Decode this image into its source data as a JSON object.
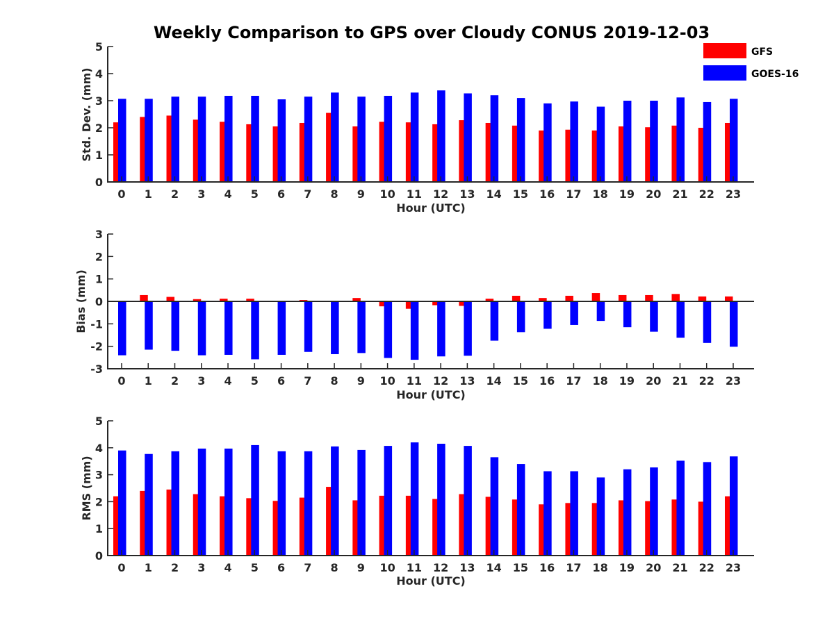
{
  "chart_data": {
    "title": "Weekly Comparison to GPS over Cloudy CONUS 2019-12-03",
    "legend": {
      "placement": "top-right",
      "entries": [
        {
          "name": "GFS",
          "color": "#ff0000"
        },
        {
          "name": "GOES-16",
          "color": "#0000ff"
        }
      ]
    },
    "panels": [
      {
        "type": "bar",
        "xlabel": "Hour (UTC)",
        "ylabel": "Std. Dev. (mm)",
        "ylim": [
          0,
          5
        ],
        "yticks": [
          "0",
          "1",
          "2",
          "3",
          "4",
          "5"
        ],
        "categories": [
          "0",
          "1",
          "2",
          "3",
          "4",
          "5",
          "6",
          "7",
          "8",
          "9",
          "10",
          "11",
          "12",
          "13",
          "14",
          "15",
          "16",
          "17",
          "18",
          "19",
          "20",
          "21",
          "22",
          "23"
        ],
        "grid": false,
        "series": [
          {
            "name": "GFS",
            "color": "#ff0000",
            "values": [
              2.2,
              2.4,
              2.45,
              2.3,
              2.22,
              2.13,
              2.05,
              2.18,
              2.55,
              2.05,
              2.22,
              2.2,
              2.13,
              2.28,
              2.18,
              2.08,
              1.9,
              1.93,
              1.9,
              2.05,
              2.02,
              2.08,
              2.0,
              2.18
            ]
          },
          {
            "name": "GOES-16",
            "color": "#0000ff",
            "values": [
              3.07,
              3.07,
              3.15,
              3.15,
              3.18,
              3.18,
              3.05,
              3.15,
              3.3,
              3.15,
              3.18,
              3.3,
              3.38,
              3.27,
              3.2,
              3.1,
              2.9,
              2.97,
              2.78,
              3.0,
              3.0,
              3.12,
              2.95,
              3.07
            ]
          }
        ]
      },
      {
        "type": "bar",
        "xlabel": "Hour (UTC)",
        "ylabel": "Bias (mm)",
        "ylim": [
          -3,
          3
        ],
        "yticks": [
          "-3",
          "-2",
          "-1",
          "0",
          "1",
          "2",
          "3"
        ],
        "categories": [
          "0",
          "1",
          "2",
          "3",
          "4",
          "5",
          "6",
          "7",
          "8",
          "9",
          "10",
          "11",
          "12",
          "13",
          "14",
          "15",
          "16",
          "17",
          "18",
          "19",
          "20",
          "21",
          "22",
          "23"
        ],
        "grid": false,
        "series": [
          {
            "name": "GFS",
            "color": "#ff0000",
            "values": [
              0.0,
              0.28,
              0.2,
              0.1,
              0.12,
              0.12,
              0.03,
              0.06,
              0.02,
              0.15,
              -0.22,
              -0.33,
              -0.17,
              -0.2,
              0.12,
              0.25,
              0.15,
              0.25,
              0.37,
              0.28,
              0.28,
              0.33,
              0.22,
              0.22
            ]
          },
          {
            "name": "GOES-16",
            "color": "#0000ff",
            "values": [
              -2.4,
              -2.15,
              -2.2,
              -2.4,
              -2.38,
              -2.58,
              -2.38,
              -2.25,
              -2.35,
              -2.3,
              -2.52,
              -2.6,
              -2.45,
              -2.42,
              -1.75,
              -1.37,
              -1.22,
              -1.05,
              -0.87,
              -1.15,
              -1.35,
              -1.62,
              -1.85,
              -2.02
            ]
          }
        ]
      },
      {
        "type": "bar",
        "xlabel": "Hour (UTC)",
        "ylabel": "RMS (mm)",
        "ylim": [
          0,
          5
        ],
        "yticks": [
          "0",
          "1",
          "2",
          "3",
          "4",
          "5"
        ],
        "categories": [
          "0",
          "1",
          "2",
          "3",
          "4",
          "5",
          "6",
          "7",
          "8",
          "9",
          "10",
          "11",
          "12",
          "13",
          "14",
          "15",
          "16",
          "17",
          "18",
          "19",
          "20",
          "21",
          "22",
          "23"
        ],
        "grid": false,
        "series": [
          {
            "name": "GFS",
            "color": "#ff0000",
            "values": [
              2.2,
              2.4,
              2.45,
              2.28,
              2.2,
              2.13,
              2.03,
              2.15,
              2.55,
              2.05,
              2.22,
              2.22,
              2.1,
              2.28,
              2.18,
              2.08,
              1.9,
              1.95,
              1.95,
              2.05,
              2.02,
              2.08,
              2.0,
              2.2
            ]
          },
          {
            "name": "GOES-16",
            "color": "#0000ff",
            "values": [
              3.9,
              3.77,
              3.87,
              3.97,
              3.97,
              4.1,
              3.87,
              3.87,
              4.05,
              3.92,
              4.07,
              4.2,
              4.15,
              4.07,
              3.65,
              3.4,
              3.13,
              3.13,
              2.9,
              3.2,
              3.27,
              3.52,
              3.47,
              3.68
            ]
          }
        ]
      }
    ]
  }
}
